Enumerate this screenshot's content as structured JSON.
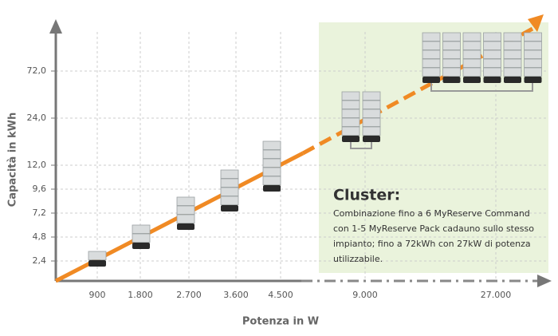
{
  "chart_data": {
    "type": "line",
    "x_label": "Potenza in W",
    "y_label": "Capacità in kWh",
    "categories": [
      "900",
      "1.800",
      "2.700",
      "3.600",
      "4.500",
      "9.000",
      "27.000"
    ],
    "y_categories": [
      "2,4",
      "4,8",
      "7,2",
      "9,6",
      "12,0",
      "24,0",
      "72,0"
    ],
    "annotation": {
      "title": "Cluster:",
      "lines": [
        "Combinazione fino a 6 MyReserve Command",
        "con 1-5 MyReserve Pack cadauno sullo stesso",
        "impianto; fino a 72kWh con 27kW di potenza",
        "utilizzabile."
      ]
    }
  }
}
